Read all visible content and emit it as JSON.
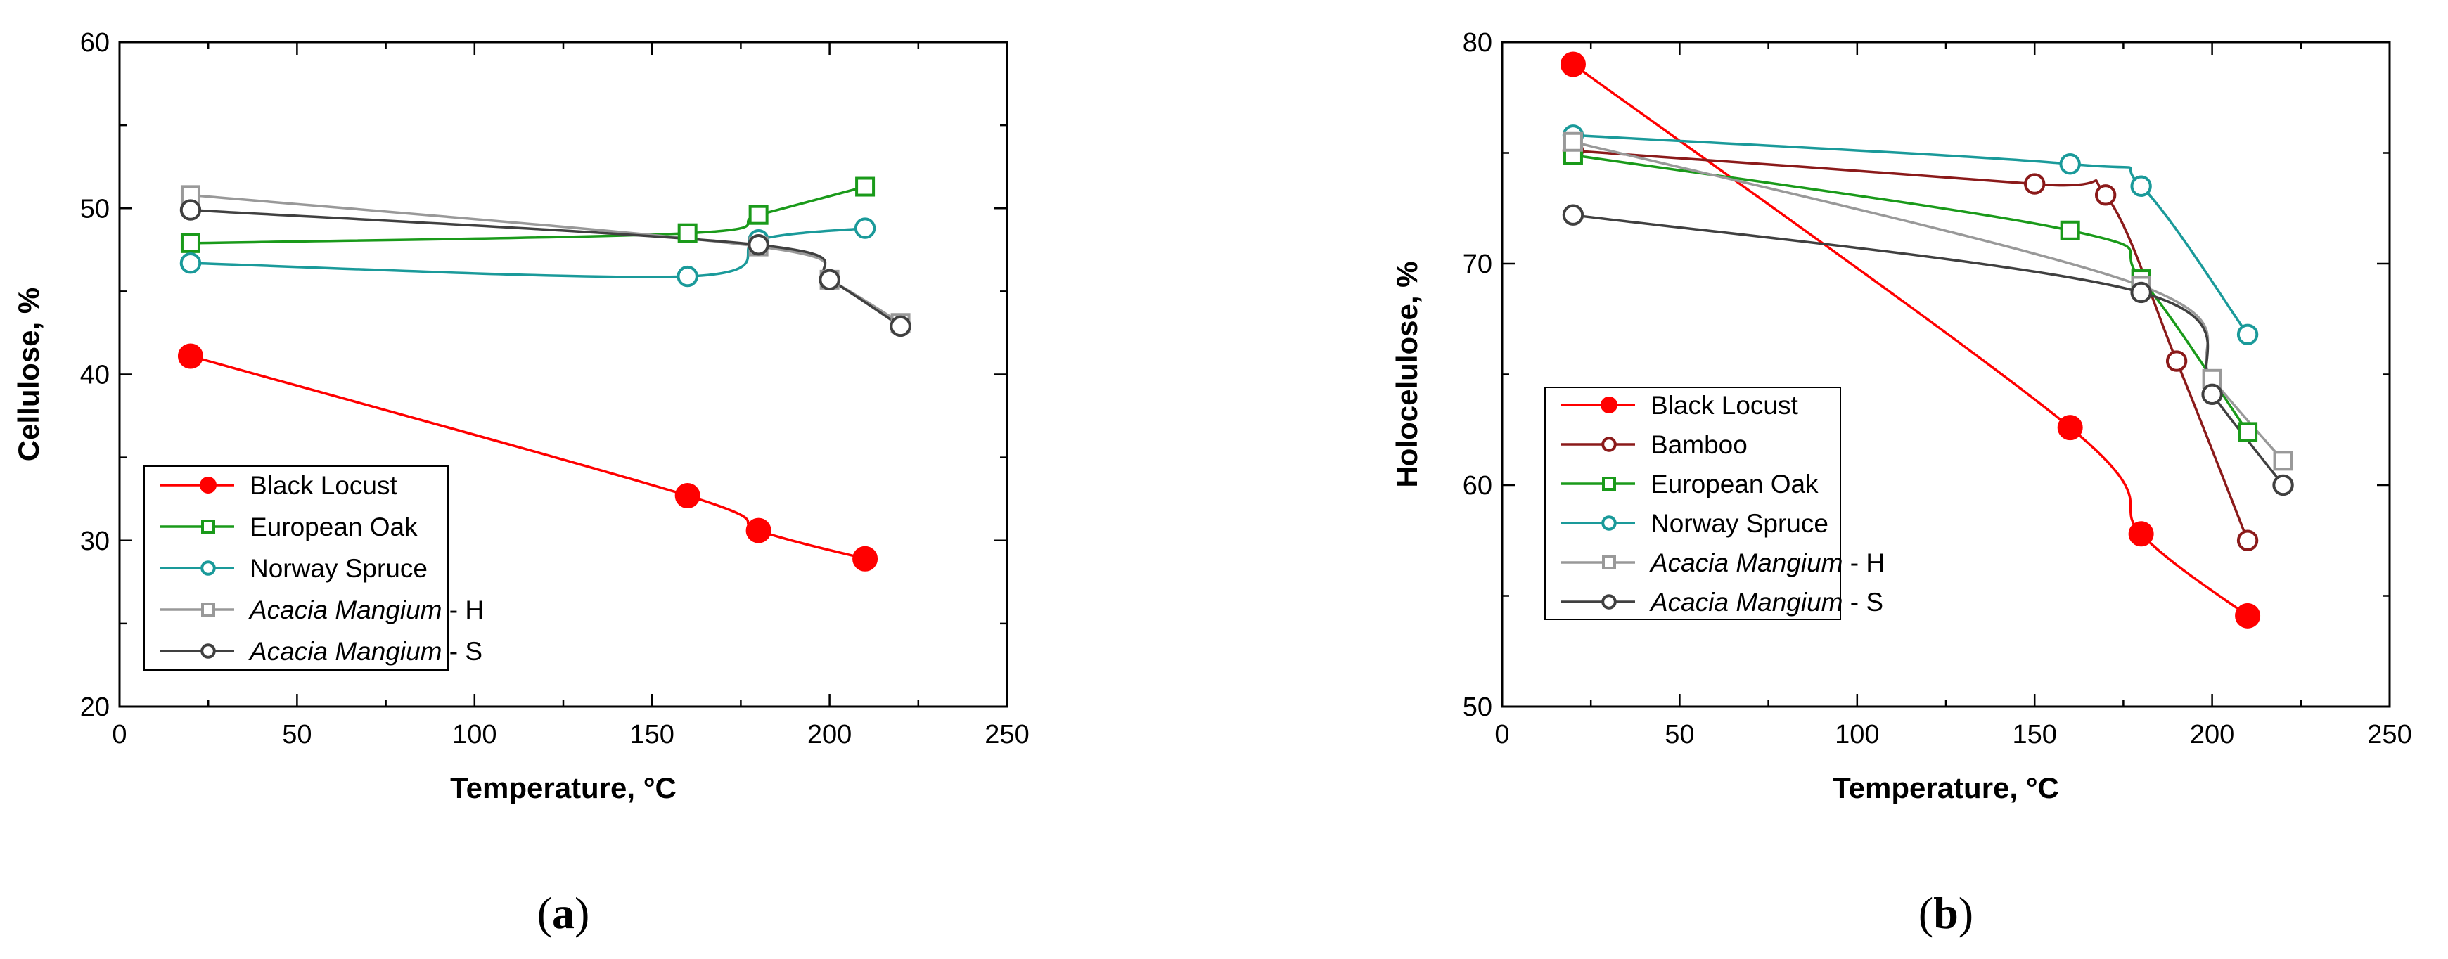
{
  "chart_data": [
    {
      "type": "line",
      "panel_label": "(a)",
      "xlabel": "Temperature, °C",
      "ylabel": "Cellulose, %",
      "xlim": [
        0,
        250
      ],
      "ylim": [
        20,
        60
      ],
      "xticks": [
        0,
        50,
        100,
        150,
        200,
        250
      ],
      "yticks": [
        20,
        30,
        40,
        50,
        60
      ],
      "legend_position": "bottom-left",
      "series": [
        {
          "name": "Black Locust",
          "name_italic": "",
          "name_suffix": "",
          "color": "#ff0000",
          "marker": "filled-circle",
          "x": [
            20,
            160,
            180,
            210
          ],
          "y": [
            41.1,
            32.7,
            30.6,
            28.9
          ]
        },
        {
          "name": "European Oak",
          "name_italic": "",
          "name_suffix": "",
          "color": "#1a9a1a",
          "marker": "open-square",
          "x": [
            20,
            160,
            180,
            210
          ],
          "y": [
            47.9,
            48.5,
            49.6,
            51.3
          ]
        },
        {
          "name": "Norway Spruce",
          "name_italic": "",
          "name_suffix": "",
          "color": "#1a9a9a",
          "marker": "open-circle",
          "x": [
            20,
            160,
            180,
            210
          ],
          "y": [
            46.7,
            45.9,
            48.1,
            48.8
          ]
        },
        {
          "name": "Acacia Mangium - H",
          "name_italic": "Acacia Mangium",
          "name_suffix": " - H",
          "color": "#999999",
          "marker": "open-square",
          "x": [
            20,
            180,
            200,
            220
          ],
          "y": [
            50.8,
            47.7,
            45.7,
            43.1
          ]
        },
        {
          "name": "Acacia Mangium - S",
          "name_italic": "Acacia Mangium",
          "name_suffix": " - S",
          "color": "#404040",
          "marker": "open-circle",
          "x": [
            20,
            180,
            200,
            220
          ],
          "y": [
            49.9,
            47.8,
            45.7,
            42.9
          ]
        }
      ]
    },
    {
      "type": "line",
      "panel_label": "(b)",
      "xlabel": "Temperature, °C",
      "ylabel": "Holocelulose, %",
      "xlim": [
        0,
        250
      ],
      "ylim": [
        50,
        80
      ],
      "xticks": [
        0,
        50,
        100,
        150,
        200,
        250
      ],
      "yticks": [
        50,
        60,
        70,
        80
      ],
      "legend_position": "bottom-left",
      "series": [
        {
          "name": "Black Locust",
          "name_italic": "",
          "name_suffix": "",
          "color": "#ff0000",
          "marker": "filled-circle",
          "x": [
            20,
            160,
            180,
            210
          ],
          "y": [
            79.0,
            62.6,
            57.8,
            54.1
          ]
        },
        {
          "name": "Bamboo",
          "name_italic": "",
          "name_suffix": "",
          "color": "#8b1a1a",
          "marker": "open-circle",
          "x": [
            20,
            150,
            170,
            190,
            210
          ],
          "y": [
            75.1,
            73.6,
            73.1,
            65.6,
            57.5
          ]
        },
        {
          "name": "European Oak",
          "name_italic": "",
          "name_suffix": "",
          "color": "#1a9a1a",
          "marker": "open-square",
          "x": [
            20,
            160,
            180,
            210
          ],
          "y": [
            74.9,
            71.5,
            69.3,
            62.4
          ]
        },
        {
          "name": "Norway Spruce",
          "name_italic": "",
          "name_suffix": "",
          "color": "#1a9a9a",
          "marker": "open-circle",
          "x": [
            20,
            160,
            180,
            210
          ],
          "y": [
            75.8,
            74.5,
            73.5,
            66.8
          ]
        },
        {
          "name": "Acacia Mangium - H",
          "name_italic": "Acacia Mangium",
          "name_suffix": " - H",
          "color": "#999999",
          "marker": "open-square",
          "x": [
            20,
            180,
            200,
            220
          ],
          "y": [
            75.5,
            69.0,
            64.8,
            61.1
          ]
        },
        {
          "name": "Acacia Mangium - S",
          "name_italic": "Acacia Mangium",
          "name_suffix": " - S",
          "color": "#404040",
          "marker": "open-circle",
          "x": [
            20,
            180,
            200,
            220
          ],
          "y": [
            72.2,
            68.7,
            64.1,
            60.0
          ]
        }
      ]
    }
  ]
}
